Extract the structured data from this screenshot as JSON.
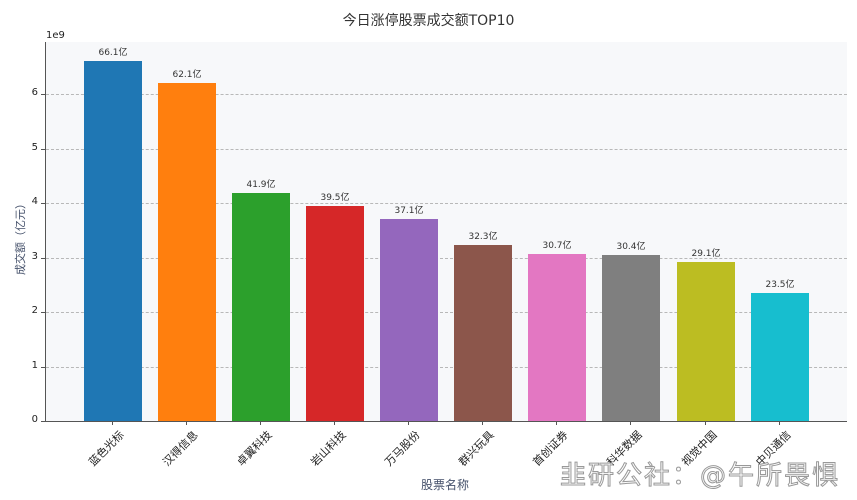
{
  "chart_data": {
    "type": "bar",
    "title": "今日涨停股票成交额TOP10",
    "xlabel": "股票名称",
    "ylabel": "成交额（亿元）",
    "y_offset_label": "1e9",
    "ylim": [
      0,
      6.95
    ],
    "yticks": [
      "0",
      "1",
      "2",
      "3",
      "4",
      "5",
      "6"
    ],
    "grid": "y dashed",
    "categories": [
      "蓝色光标",
      "汉得信息",
      "卓翼科技",
      "岩山科技",
      "万马股份",
      "群兴玩具",
      "首创证券",
      "科华数据",
      "视觉中国",
      "中贝通信"
    ],
    "values": [
      6610000000.0,
      6210000000.0,
      4190000000.0,
      3950000000.0,
      3710000000.0,
      3230000000.0,
      3070000000.0,
      3040000000.0,
      2910000000.0,
      2350000000.0
    ],
    "data_labels": [
      "66.1亿",
      "62.1亿",
      "41.9亿",
      "39.5亿",
      "37.1亿",
      "32.3亿",
      "30.7亿",
      "30.4亿",
      "29.1亿",
      "23.5亿"
    ],
    "colors": [
      "#1f77b4",
      "#ff7f0e",
      "#2ca02c",
      "#d62728",
      "#9467bd",
      "#8c564b",
      "#e377c2",
      "#7f7f7f",
      "#bcbd22",
      "#17becf"
    ]
  },
  "watermark": "韭研公社：@午所畏惧"
}
